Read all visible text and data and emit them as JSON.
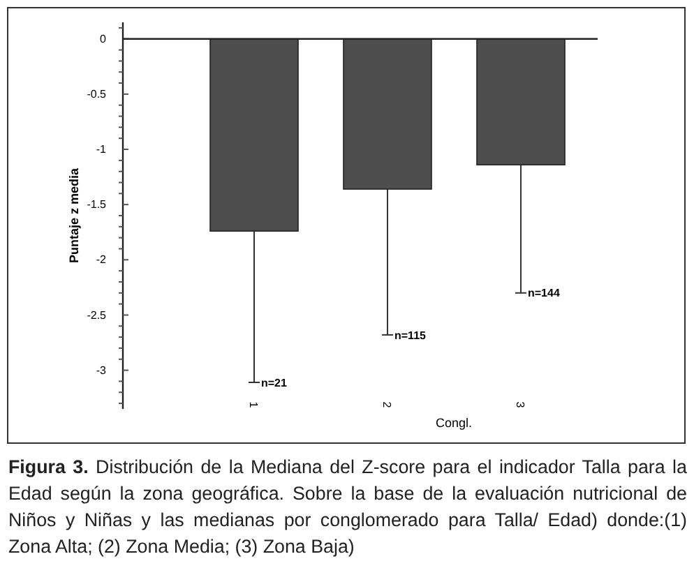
{
  "chart_data": {
    "type": "bar",
    "xlabel": "Congl.",
    "ylabel": "Puntaje z media",
    "categories": [
      "1",
      "2",
      "3"
    ],
    "values": [
      -1.74,
      -1.36,
      -1.14
    ],
    "errors": [
      [
        -3.11,
        -1.74
      ],
      [
        -2.68,
        -1.36
      ],
      [
        -2.3,
        -1.14
      ]
    ],
    "color": "#4d4d4d",
    "ylim": [
      -3.35,
      0.15
    ],
    "yticks": [
      {
        "value": -3.3,
        "label": null
      },
      {
        "value": -3.2,
        "label": null
      },
      {
        "value": -3.1,
        "label": null
      },
      -3,
      {
        "value": -2.9,
        "label": null
      },
      {
        "value": -2.8,
        "label": null
      },
      {
        "value": -2.7,
        "label": null
      },
      {
        "value": -2.6,
        "label": null
      },
      -2.5,
      {
        "value": -2.4,
        "label": null
      },
      {
        "value": -2.3,
        "label": null
      },
      {
        "value": -2.2,
        "label": null
      },
      {
        "value": -2.1,
        "label": null
      },
      -2,
      {
        "value": -1.9,
        "label": null
      },
      {
        "value": -1.8,
        "label": null
      },
      {
        "value": -1.7,
        "label": null
      },
      {
        "value": -1.6,
        "label": null
      },
      -1.5,
      {
        "value": -1.4,
        "label": null
      },
      {
        "value": -1.3,
        "label": null
      },
      {
        "value": -1.2,
        "label": null
      },
      {
        "value": -1.1,
        "label": null
      },
      -1,
      {
        "value": -0.9,
        "label": null
      },
      {
        "value": -0.8,
        "label": null
      },
      {
        "value": -0.7,
        "label": null
      },
      {
        "value": -0.6,
        "label": null
      },
      -0.5,
      {
        "value": -0.4,
        "label": null
      },
      {
        "value": -0.3,
        "label": null
      },
      {
        "value": -0.2,
        "label": null
      },
      {
        "value": -0.1,
        "label": null
      },
      0,
      {
        "value": 0.1,
        "label": null
      }
    ],
    "annotations": [
      "n=21",
      "n=115",
      "n=144",
      "Figura 3.",
      "Distribución de la Mediana del Z-score para el indicador Talla para la Edad según la zona geográfica. Sobre la base de la evaluación nutricional de Niños y Niñas y las medianas por conglomerado para Talla/ Edad) donde:(1) Zona Alta; (2) Zona Media; (3) Zona Baja)"
    ]
  }
}
